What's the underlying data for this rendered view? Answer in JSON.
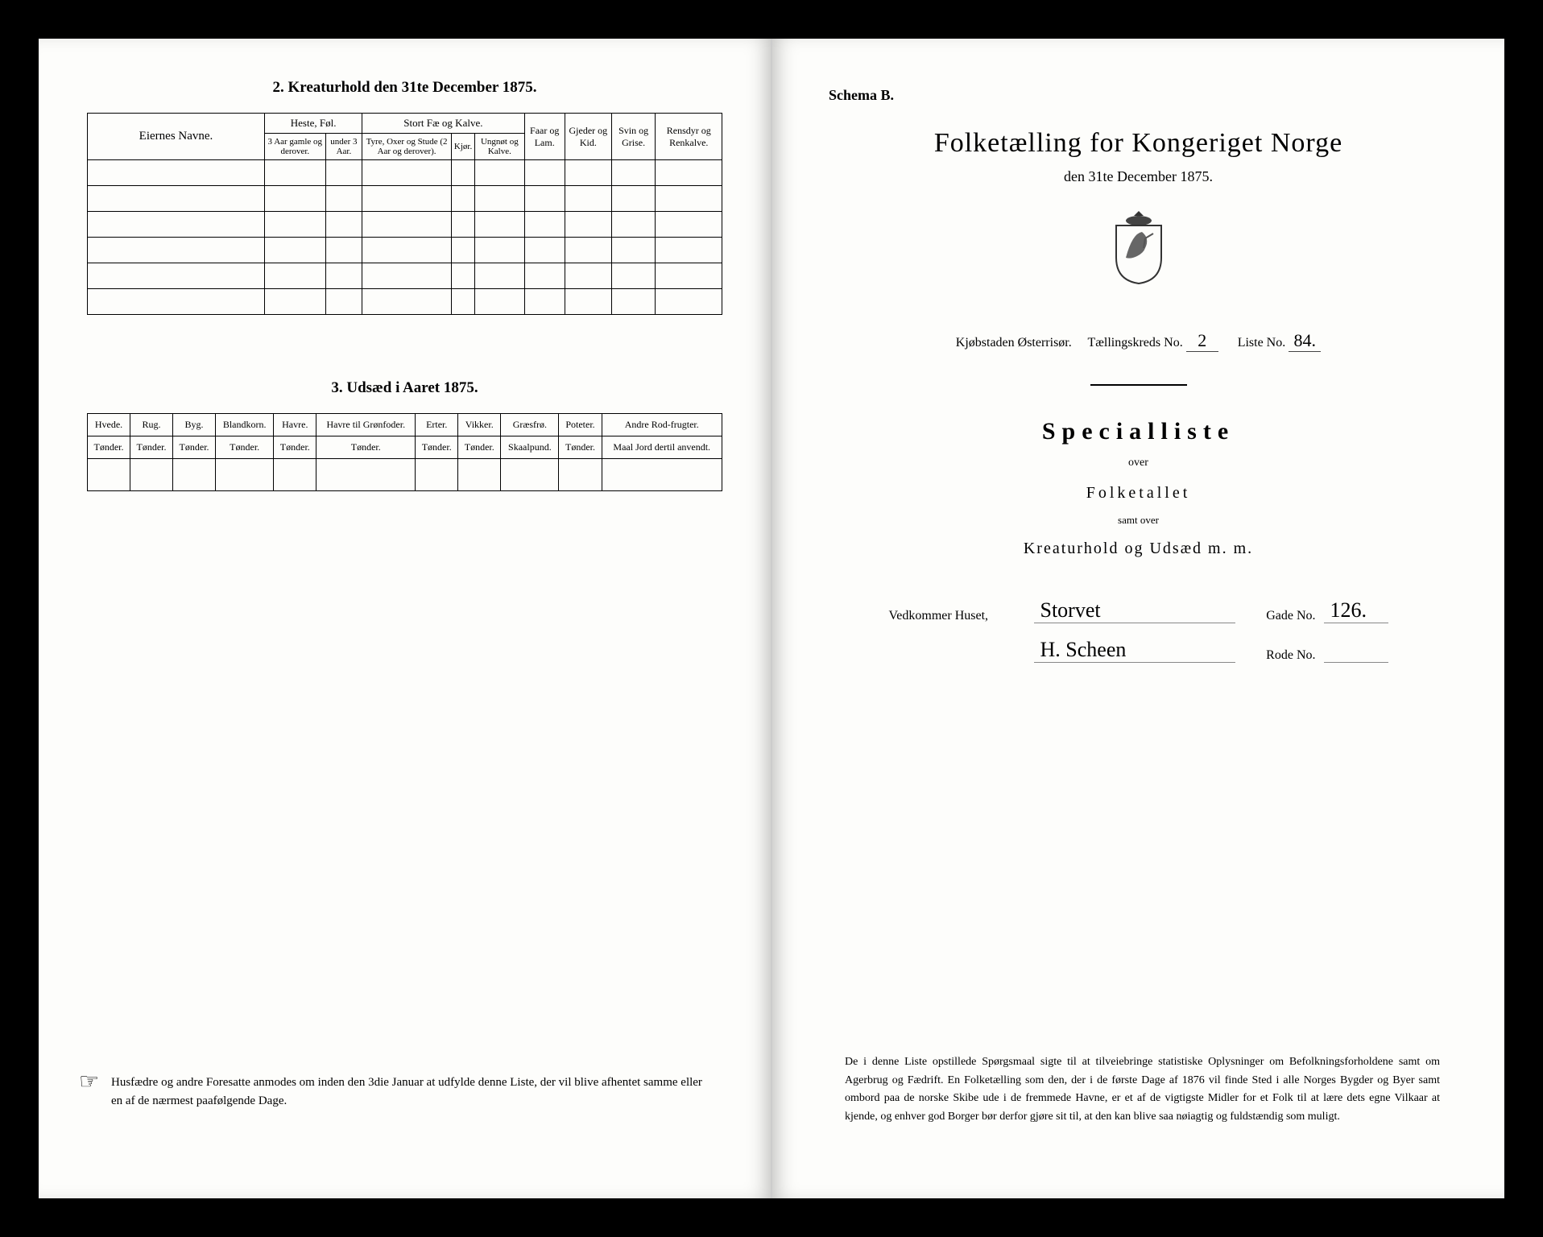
{
  "left": {
    "section2_title": "2.  Kreaturhold den 31te December 1875.",
    "kreatur_table": {
      "col_eier": "Eiernes Navne.",
      "grp_heste": "Heste, Føl.",
      "heste_a": "3 Aar gamle og derover.",
      "heste_b": "under 3 Aar.",
      "grp_stort": "Stort Fæ og Kalve.",
      "stort_a": "Tyre, Oxer og Stude (2 Aar og derover).",
      "stort_b": "Kjør.",
      "stort_c": "Ungnøt og Kalve.",
      "faar": "Faar og Lam.",
      "gjed": "Gjeder og Kid.",
      "svin": "Svin og Grise.",
      "rens": "Rensdyr og Renkalve.",
      "rows": 6
    },
    "section3_title": "3.  Udsæd i Aaret 1875.",
    "udsaed_table": {
      "cols": [
        {
          "h": "Hvede.",
          "s": "Tønder."
        },
        {
          "h": "Rug.",
          "s": "Tønder."
        },
        {
          "h": "Byg.",
          "s": "Tønder."
        },
        {
          "h": "Blandkorn.",
          "s": "Tønder."
        },
        {
          "h": "Havre.",
          "s": "Tønder."
        },
        {
          "h": "Havre til Grønfoder.",
          "s": "Tønder."
        },
        {
          "h": "Erter.",
          "s": "Tønder."
        },
        {
          "h": "Vikker.",
          "s": "Tønder."
        },
        {
          "h": "Græsfrø.",
          "s": "Skaalpund."
        },
        {
          "h": "Poteter.",
          "s": "Tønder."
        },
        {
          "h": "Andre Rod-frugter.",
          "s": "Maal Jord dertil anvendt."
        }
      ]
    },
    "footnote": "Husfædre og andre Foresatte anmodes om inden den 3die Januar at udfylde denne Liste, der vil blive afhentet samme eller en af de nærmest paafølgende Dage.",
    "hand_icon": "☞"
  },
  "right": {
    "schema": "Schema B.",
    "title": "Folketælling for Kongeriget Norge",
    "sub_date": "den 31te December 1875.",
    "meta_city_label": "Kjøbstaden Østerrisør.",
    "meta_kreds_label": "Tællingskreds No.",
    "meta_kreds_val": "2",
    "meta_liste_label": "Liste No.",
    "meta_liste_val": "84.",
    "special": "Specialliste",
    "over": "over",
    "folketallet": "Folketallet",
    "samt": "samt over",
    "kreat": "Kreaturhold og Udsæd m. m.",
    "house_label": "Vedkommer Huset,",
    "house_val": "Storvet",
    "owner_val": "H. Scheen",
    "gade_label": "Gade No.",
    "gade_val": "126.",
    "rode_label": "Rode No.",
    "rode_val": "",
    "bottom": "De i denne Liste opstillede Spørgsmaal sigte til at tilveiebringe statistiske Oplysninger om Befolkningsforholdene samt om Agerbrug og Fædrift.  En Folketælling som den, der i de første Dage af 1876 vil finde Sted i alle Norges Bygder og Byer samt ombord paa de norske Skibe ude i de fremmede Havne, er et af de vigtigste Midler for et Folk til at lære dets egne Vilkaar at kjende, og enhver god Borger bør derfor gjøre sit til, at den kan blive saa nøiagtig og fuldstændig som muligt."
  }
}
